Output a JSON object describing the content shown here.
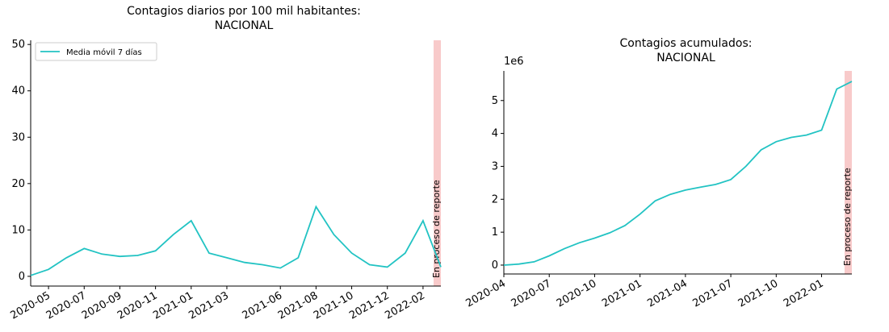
{
  "chart_data": [
    {
      "type": "line",
      "title": [
        "Contagios diarios por 100 mil habitantes:",
        "NACIONAL"
      ],
      "annotation": "En proceso de reporte",
      "x": [
        "2020-04",
        "2020-05",
        "2020-06",
        "2020-07",
        "2020-08",
        "2020-09",
        "2020-10",
        "2020-11",
        "2020-12",
        "2021-01",
        "2021-02",
        "2021-03",
        "2021-04",
        "2021-05",
        "2021-06",
        "2021-07",
        "2021-08",
        "2021-09",
        "2021-10",
        "2021-11",
        "2021-12",
        "2022-01",
        "2022-02",
        "2022-03"
      ],
      "series": [
        {
          "name": "Media móvil 7 días",
          "color": "#22c3c3",
          "values": [
            0.2,
            1.5,
            4,
            6,
            4.8,
            4.3,
            4.5,
            5.5,
            9,
            12,
            5,
            4,
            3,
            2.5,
            1.8,
            4,
            15,
            9,
            5,
            2.5,
            2,
            5,
            12,
            2
          ]
        }
      ],
      "xlim": [
        "2020-04",
        "2022-03"
      ],
      "xticks": [
        "2020-05",
        "2020-07",
        "2020-09",
        "2020-11",
        "2021-01",
        "2021-03",
        "2021-06",
        "2021-08",
        "2021-10",
        "2021-12",
        "2022-02"
      ],
      "ylim": [
        -2.1,
        50.9
      ],
      "yticks": [
        0,
        10,
        20,
        30,
        40,
        50
      ],
      "legend": "upper left"
    },
    {
      "type": "line",
      "title": [
        "Contagios acumulados:",
        "NACIONAL"
      ],
      "annotation": "En proceso de reporte",
      "y_offset_label": "1e6",
      "x": [
        "2020-04",
        "2020-05",
        "2020-06",
        "2020-07",
        "2020-08",
        "2020-09",
        "2020-10",
        "2020-11",
        "2020-12",
        "2021-01",
        "2021-02",
        "2021-03",
        "2021-04",
        "2021-05",
        "2021-06",
        "2021-07",
        "2021-08",
        "2021-09",
        "2021-10",
        "2021-11",
        "2021-12",
        "2022-01",
        "2022-02",
        "2022-03"
      ],
      "series": [
        {
          "color": "#22c3c3",
          "values": [
            0,
            0.03,
            0.1,
            0.28,
            0.5,
            0.68,
            0.82,
            0.98,
            1.2,
            1.55,
            1.95,
            2.15,
            2.28,
            2.37,
            2.45,
            2.6,
            3.0,
            3.5,
            3.75,
            3.88,
            3.95,
            4.1,
            5.35,
            5.58
          ]
        }
      ],
      "xlim": [
        "2020-04",
        "2022-03"
      ],
      "xticks": [
        "2020-04",
        "2020-07",
        "2020-10",
        "2021-01",
        "2021-04",
        "2021-07",
        "2021-10",
        "2022-01"
      ],
      "ylim": [
        -0.27,
        5.9
      ],
      "yticks": [
        0,
        1,
        2,
        3,
        4,
        5
      ]
    }
  ]
}
